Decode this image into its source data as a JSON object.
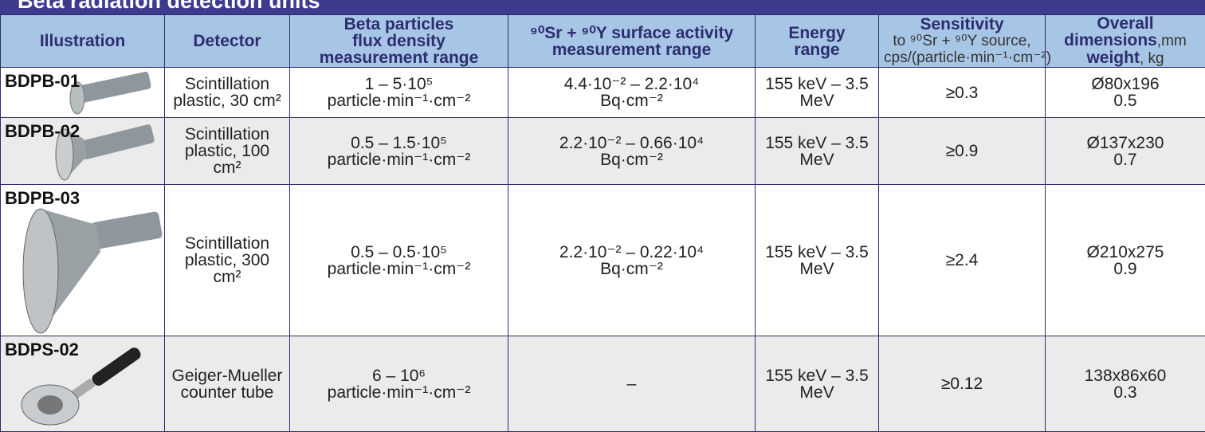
{
  "title": "Beta radiation detection units",
  "header": {
    "illustration": "Illustration",
    "detector": "Detector",
    "flux": [
      "Beta particles",
      "flux density",
      "measurement range"
    ],
    "activity": [
      "⁹⁰Sr + ⁹⁰Y surface activity",
      "measurement range"
    ],
    "energy": [
      "Energy",
      "range"
    ],
    "sensitivity": [
      "Sensitivity",
      "to ⁹⁰Sr + ⁹⁰Y source,",
      "cps/(particle·min⁻¹·cm⁻²)"
    ],
    "dimensions": [
      "Overall",
      "dimensions",
      ",mm",
      "weight",
      ", kg"
    ]
  },
  "rows": [
    {
      "model": "BDPB-01",
      "detector": "Scintillation plastic, 30 cm²",
      "flux": [
        "1 – 5·10⁵",
        "particle·min⁻¹·cm⁻²"
      ],
      "activity": [
        "4.4·10⁻² – 2.2·10⁴",
        "Bq·cm⁻²"
      ],
      "energy": "155 keV – 3.5 MeV",
      "sensitivity": "≥0.3",
      "dimensions": [
        "Ø80x196",
        "0.5"
      ]
    },
    {
      "model": "BDPB-02",
      "detector": "Scintillation plastic, 100 cm²",
      "flux": [
        "0.5 – 1.5·10⁵",
        "particle·min⁻¹·cm⁻²"
      ],
      "activity": [
        "2.2·10⁻² – 0.66·10⁴",
        "Bq·cm⁻²"
      ],
      "energy": "155 keV – 3.5 MeV",
      "sensitivity": "≥0.9",
      "dimensions": [
        "Ø137x230",
        "0.7"
      ]
    },
    {
      "model": "BDPB-03",
      "detector": "Scintillation plastic, 300 cm²",
      "flux": [
        "0.5 – 0.5·10⁵",
        "particle·min⁻¹·cm⁻²"
      ],
      "activity": [
        "2.2·10⁻² – 0.22·10⁴",
        "Bq·cm⁻²"
      ],
      "energy": "155 keV – 3.5 MeV",
      "sensitivity": "≥2.4",
      "dimensions": [
        "Ø210x275",
        "0.9"
      ]
    },
    {
      "model": "BDPS-02",
      "detector": "Geiger-Mueller counter tube",
      "flux": [
        "6 – 10⁶",
        "particle·min⁻¹·cm⁻²"
      ],
      "activity": [
        "–"
      ],
      "energy": "155 keV – 3.5 MeV",
      "sensitivity": "≥0.12",
      "dimensions": [
        "138x86x60",
        "0.3"
      ]
    }
  ]
}
